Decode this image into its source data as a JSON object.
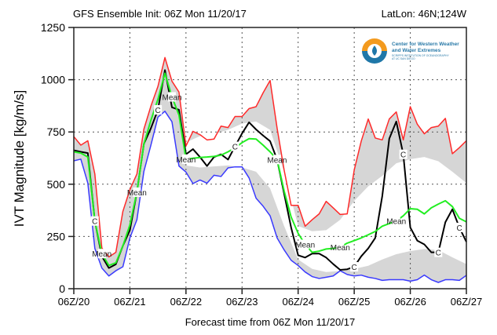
{
  "chart_data": {
    "type": "line",
    "title": "GFS Ensemble Init: 06Z Mon 11/20/17",
    "location": "LatLon: 46N;124W",
    "xlabel": "Forecast time from 06Z Mon 11/20/17",
    "ylabel": "IVT Magnitude [kg/m/s]",
    "xlim": [
      0,
      168
    ],
    "ylim": [
      0,
      1250
    ],
    "x_ticks": [
      {
        "h": 0,
        "label": "06Z/20"
      },
      {
        "h": 24,
        "label": "06Z/21"
      },
      {
        "h": 48,
        "label": "06Z/22"
      },
      {
        "h": 72,
        "label": "06Z/23"
      },
      {
        "h": 96,
        "label": "06Z/24"
      },
      {
        "h": 120,
        "label": "06Z/25"
      },
      {
        "h": 144,
        "label": "06Z/26"
      },
      {
        "h": 168,
        "label": "06Z/27"
      }
    ],
    "y_ticks": [
      0,
      250,
      500,
      750,
      1000,
      1250
    ],
    "grid": true,
    "x": [
      0,
      3,
      6,
      9,
      12,
      15,
      18,
      21,
      24,
      27,
      30,
      33,
      36,
      39,
      42,
      45,
      48,
      51,
      54,
      57,
      60,
      63,
      66,
      69,
      72,
      75,
      78,
      81,
      84,
      87,
      90,
      93,
      96,
      99,
      102,
      105,
      108,
      111,
      114,
      117,
      120,
      123,
      126,
      129,
      132,
      135,
      138,
      141,
      144,
      147,
      150,
      153,
      156,
      159,
      162,
      165,
      168
    ],
    "series": [
      {
        "role": "ensemble-max",
        "color": "#ff2a2a",
        "values": [
          728,
          687,
          708,
          549,
          195,
          152,
          174,
          370,
          474,
          549,
          764,
          874,
          968,
          1106,
          993,
          941,
          683,
          753,
          737,
          712,
          716,
          778,
          771,
          824,
          824,
          862,
          871,
          937,
          996,
          768,
          568,
          399,
          399,
          299,
          330,
          358,
          418,
          387,
          355,
          358,
          568,
          706,
          812,
          721,
          712,
          812,
          846,
          712,
          871,
          787,
          741,
          771,
          778,
          815,
          646,
          675,
          708
        ]
      },
      {
        "role": "ensemble-min",
        "color": "#3a3aff",
        "values": [
          612,
          620,
          505,
          193,
          99,
          61,
          86,
          105,
          243,
          330,
          562,
          687,
          821,
          849,
          799,
          587,
          558,
          503,
          520,
          505,
          543,
          537,
          578,
          583,
          583,
          530,
          433,
          395,
          349,
          243,
          186,
          136,
          111,
          80,
          58,
          49,
          55,
          61,
          86,
          68,
          61,
          65,
          55,
          49,
          40,
          43,
          43,
          43,
          36,
          43,
          65,
          43,
          30,
          43,
          43,
          40,
          64
        ]
      },
      {
        "role": "control",
        "label": "C",
        "color": "#000000",
        "values": [
          662,
          655,
          649,
          324,
          155,
          99,
          117,
          205,
          280,
          462,
          693,
          768,
          856,
          1046,
          868,
          856,
          643,
          668,
          630,
          587,
          630,
          643,
          618,
          681,
          743,
          796,
          762,
          733,
          706,
          618,
          455,
          293,
          160,
          149,
          168,
          168,
          149,
          118,
          90,
          93,
          105,
          155,
          193,
          243,
          443,
          718,
          800,
          643,
          293,
          230,
          212,
          174,
          174,
          318,
          380,
          293,
          224
        ]
      },
      {
        "role": "ensemble-mean",
        "label": "Mean",
        "color": "#22ee22",
        "values": [
          655,
          649,
          630,
          324,
          168,
          111,
          124,
          205,
          305,
          462,
          693,
          806,
          906,
          1031,
          918,
          831,
          620,
          624,
          628,
          630,
          633,
          639,
          655,
          674,
          699,
          718,
          716,
          687,
          655,
          618,
          468,
          343,
          265,
          212,
          174,
          180,
          190,
          193,
          199,
          218,
          230,
          243,
          258,
          274,
          299,
          312,
          324,
          349,
          383,
          380,
          358,
          387,
          405,
          421,
          393,
          337,
          320
        ]
      }
    ],
    "inner_band": {
      "color": "#ffffff",
      "upper": [
        [
          48,
          700
        ],
        [
          54,
          730
        ],
        [
          60,
          740
        ],
        [
          66,
          760
        ],
        [
          72,
          790
        ],
        [
          78,
          800
        ],
        [
          84,
          760
        ],
        [
          90,
          560
        ],
        [
          96,
          300
        ],
        [
          102,
          275
        ],
        [
          108,
          280
        ],
        [
          114,
          330
        ],
        [
          120,
          420
        ],
        [
          126,
          490
        ],
        [
          132,
          540
        ],
        [
          138,
          600
        ],
        [
          144,
          620
        ],
        [
          150,
          630
        ],
        [
          156,
          610
        ],
        [
          162,
          560
        ],
        [
          168,
          506
        ]
      ],
      "lower": [
        [
          48,
          590
        ],
        [
          54,
          580
        ],
        [
          60,
          585
        ],
        [
          66,
          590
        ],
        [
          72,
          580
        ],
        [
          78,
          560
        ],
        [
          84,
          480
        ],
        [
          90,
          300
        ],
        [
          96,
          140
        ],
        [
          102,
          95
        ],
        [
          108,
          80
        ],
        [
          114,
          85
        ],
        [
          120,
          95
        ],
        [
          126,
          110
        ],
        [
          132,
          140
        ],
        [
          138,
          165
        ],
        [
          144,
          180
        ],
        [
          150,
          190
        ],
        [
          156,
          185
        ],
        [
          162,
          150
        ],
        [
          168,
          118
        ]
      ]
    },
    "band_color": "#d6d6d6"
  },
  "logo": {
    "line1": "Center for Western Weather",
    "line2": "and Water Extremes",
    "line3": "SCRIPPS INSTITUTION OF OCEANOGRAPHY",
    "line4": "AT UC SAN DIEGO"
  }
}
